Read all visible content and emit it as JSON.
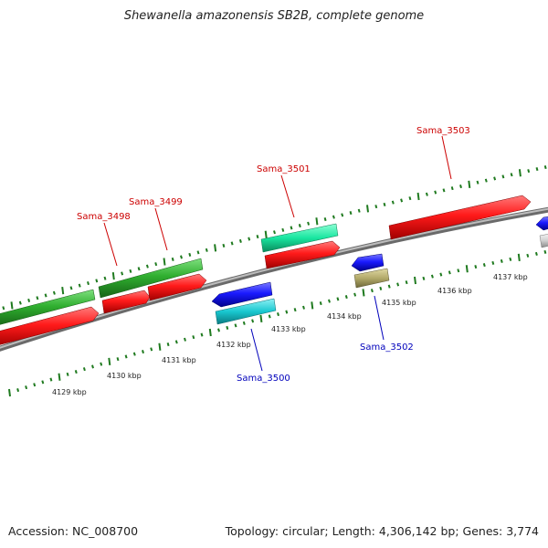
{
  "title": "Shewanella amazonensis SB2B, complete genome",
  "footer": {
    "accession": "Accession: NC_008700",
    "summary": "Topology: circular; Length: 4,306,142 bp; Genes: 3,774"
  },
  "colors": {
    "label_forward": "#cc0000",
    "label_reverse": "#0000bb",
    "backbone": "#8c8c8c",
    "tick": "#1f7a1f"
  },
  "ticks": {
    "unit": "kbp",
    "labels": [
      "4129 kbp",
      "4130 kbp",
      "4131 kbp",
      "4132 kbp",
      "4133 kbp",
      "4134 kbp",
      "4135 kbp",
      "4136 kbp",
      "4137 kbp"
    ]
  },
  "gene_labels": [
    {
      "id": "Sama_3498",
      "strand": "forward"
    },
    {
      "id": "Sama_3499",
      "strand": "forward"
    },
    {
      "id": "Sama_3501",
      "strand": "forward"
    },
    {
      "id": "Sama_3503",
      "strand": "forward"
    },
    {
      "id": "Sama_3500",
      "strand": "reverse"
    },
    {
      "id": "Sama_3502",
      "strand": "reverse"
    }
  ],
  "features": [
    {
      "name": "cds-forward",
      "color": "#ff1a1a"
    },
    {
      "name": "gene-green",
      "color": "#2fae2f"
    },
    {
      "name": "rna-mint",
      "color": "#19e6a0"
    },
    {
      "name": "cds-reverse",
      "color": "#1a1aff"
    },
    {
      "name": "rna-cyan",
      "color": "#19c8d0"
    },
    {
      "name": "other-khaki",
      "color": "#b3aa6b"
    },
    {
      "name": "other-grey",
      "color": "#cfcfcf"
    }
  ]
}
